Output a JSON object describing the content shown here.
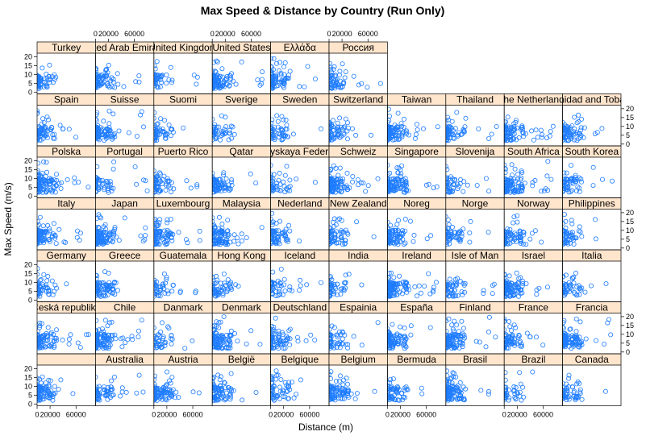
{
  "chart_data": {
    "type": "scatter",
    "title": "Max Speed & Distance by Country (Run Only)",
    "xlabel": "Distance (m)",
    "ylabel": "Max Speed (m/s)",
    "xlim": [
      0,
      90000
    ],
    "ylim": [
      -1,
      22
    ],
    "x_ticks": [
      0,
      20000,
      60000
    ],
    "x_tick_labels": [
      "0",
      "20000",
      "60000"
    ],
    "y_ticks": [
      0,
      5,
      10,
      15,
      20
    ],
    "y_tick_labels": [
      "0",
      "5",
      "10",
      "15",
      "20"
    ],
    "point_color": "#1e7cff",
    "strip_color": "#ffe5cc",
    "layout": {
      "columns": 10,
      "rows": 7
    },
    "grid": false,
    "panels_bottom_to_top": [
      [
        "",
        "Australia",
        "Austria",
        "België",
        "Belgique",
        "Belgium",
        "Bermuda",
        "Brasil",
        "Brazil",
        "Canada"
      ],
      [
        "Česká republika",
        "Chile",
        "Danmark",
        "Denmark",
        "Deutschland",
        "Espainia",
        "España",
        "Finland",
        "France",
        "Francia"
      ],
      [
        "Germany",
        "Greece",
        "Guatemala",
        "Hong Kong",
        "Iceland",
        "India",
        "Ireland",
        "Isle of Man",
        "Israel",
        "Italia"
      ],
      [
        "Italy",
        "Japan",
        "Luxembourg",
        "Malaysia",
        "Nederland",
        "New Zealand",
        "Noreg",
        "Norge",
        "Norway",
        "Philippines"
      ],
      [
        "Polska",
        "Portugal",
        "Puerto Rico",
        "Qatar",
        "Rossiyskaya Federatsiya",
        "Schweiz",
        "Singapore",
        "Slovenija",
        "South Africa",
        "South Korea"
      ],
      [
        "Spain",
        "Suisse",
        "Suomi",
        "Sverige",
        "Sweden",
        "Switzerland",
        "Taiwan",
        "Thailand",
        "The Netherlands",
        "Trinidad and Tobago"
      ],
      [
        "Turkey",
        "United Arab Emirates",
        "United Kingdom",
        "United States",
        "Ελλάδα",
        "Россия"
      ]
    ],
    "series": [
      {
        "name": "Run",
        "points_per_panel_summary": "dense near x 0–20000, y 0–20"
      }
    ]
  }
}
